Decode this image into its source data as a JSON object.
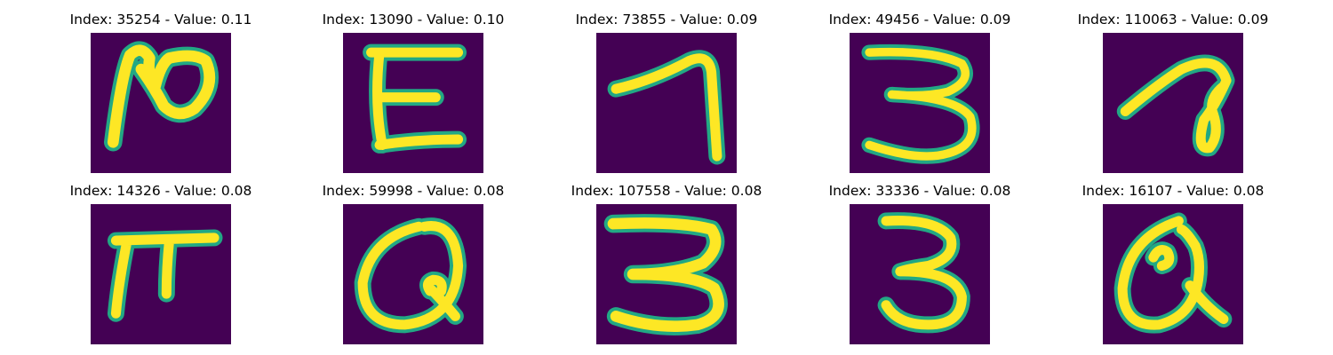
{
  "colors": {
    "background": "#440154",
    "stroke_outer": "#22a884",
    "stroke_inner": "#fde725"
  },
  "panels": [
    {
      "title": "Index: 35254 - Value: 0.11",
      "glyph": "curl-2"
    },
    {
      "title": "Index: 13090 - Value: 0.10",
      "glyph": "E"
    },
    {
      "title": "Index: 73855 - Value: 0.09",
      "glyph": "7"
    },
    {
      "title": "Index: 49456 - Value: 0.09",
      "glyph": "3"
    },
    {
      "title": "Index: 110063 - Value: 0.09",
      "glyph": "loop-a"
    },
    {
      "title": "Index: 14326 - Value: 0.08",
      "glyph": "pi"
    },
    {
      "title": "Index: 59998 - Value: 0.08",
      "glyph": "Q"
    },
    {
      "title": "Index: 107558 - Value: 0.08",
      "glyph": "3"
    },
    {
      "title": "Index: 33336 - Value: 0.08",
      "glyph": "3"
    },
    {
      "title": "Index: 16107 - Value: 0.08",
      "glyph": "alpha"
    }
  ]
}
